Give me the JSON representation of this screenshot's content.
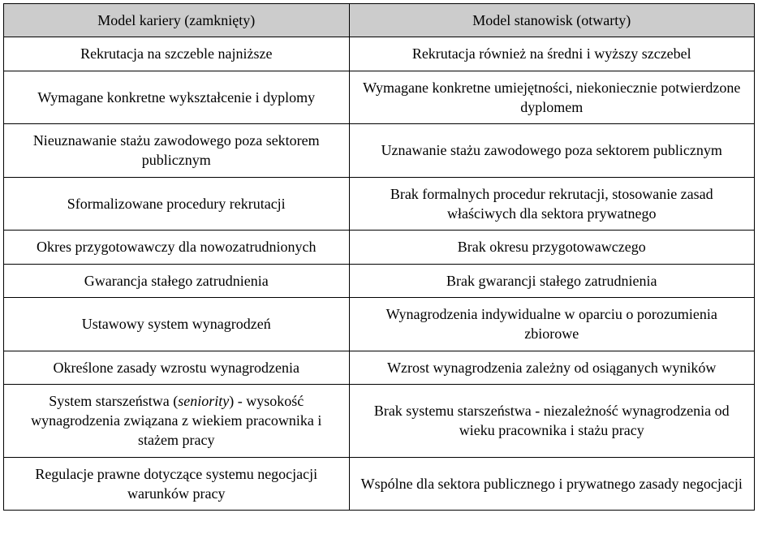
{
  "table": {
    "background_color": "#ffffff",
    "header_background": "#cccccc",
    "border_color": "#000000",
    "font_family": "Times New Roman",
    "font_size": 18,
    "columns": [
      {
        "label": "Model kariery (zamknięty)",
        "width_pct": 46
      },
      {
        "label": "Model stanowisk (otwarty)",
        "width_pct": 54
      }
    ],
    "rows": [
      {
        "left": "Rekrutacja na szczeble najniższe",
        "right": "Rekrutacja również na średni i wyższy szczebel"
      },
      {
        "left": "Wymagane konkretne wykształcenie i dyplomy",
        "right": "Wymagane konkretne umiejętności, niekoniecznie potwierdzone dyplomem"
      },
      {
        "left": "Nieuznawanie stażu zawodowego poza sektorem publicznym",
        "right": "Uznawanie stażu zawodowego poza sektorem publicznym"
      },
      {
        "left": "Sformalizowane procedury rekrutacji",
        "right": "Brak formalnych procedur rekrutacji, stosowanie zasad właściwych dla sektora prywatnego"
      },
      {
        "left": "Okres przygotowawczy dla nowozatrudnionych",
        "right": "Brak okresu przygotowawczego"
      },
      {
        "left": "Gwarancja stałego zatrudnienia",
        "right": "Brak gwarancji stałego zatrudnienia"
      },
      {
        "left": "Ustawowy system wynagrodzeń",
        "right": "Wynagrodzenia indywidualne w oparciu o porozumienia zbiorowe"
      },
      {
        "left": "Określone zasady wzrostu wynagrodzenia",
        "right": "Wzrost wynagrodzenia zależny od osiąganych wyników"
      },
      {
        "left_html": "System starszeństwa (<em>seniority</em>) - wysokość wynagrodzenia związana z wiekiem pracownika i stażem pracy",
        "right": "Brak systemu starszeństwa - niezależność wynagrodzenia od wieku pracownika i stażu pracy"
      },
      {
        "left": "Regulacje prawne dotyczące systemu negocjacji warunków pracy",
        "right": "Wspólne dla sektora publicznego i prywatnego zasady negocjacji"
      }
    ]
  }
}
